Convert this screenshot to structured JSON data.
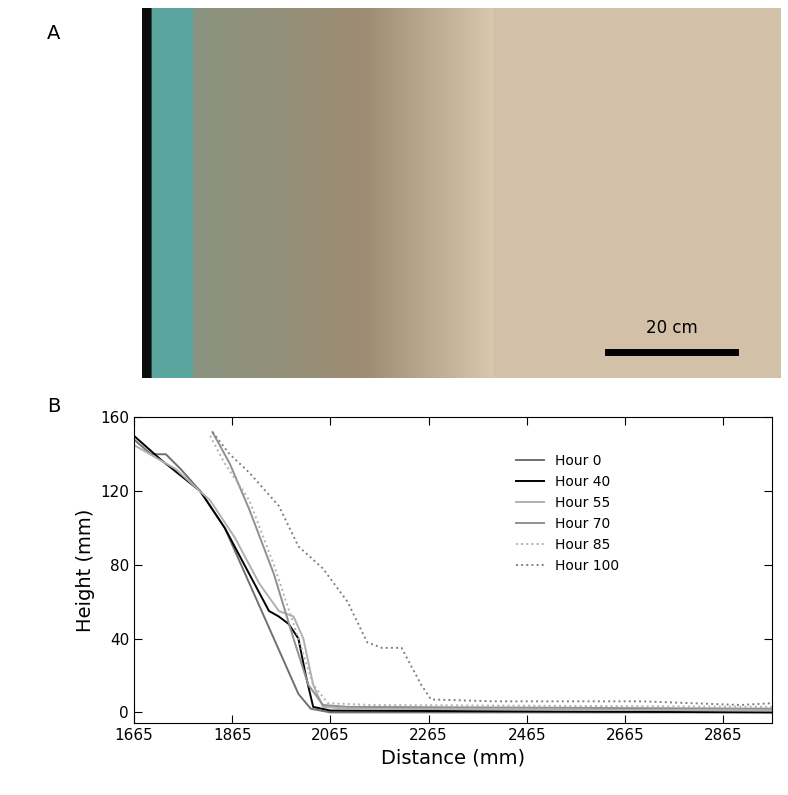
{
  "panels": [
    "A",
    "B"
  ],
  "photo": {
    "scale_bar_label": "20 cm"
  },
  "chart_data": {
    "type": "line",
    "x_label": "Distance (mm)",
    "y_label": "Height (mm)",
    "xlim": [
      1665,
      2965
    ],
    "xticks": [
      1665,
      1865,
      2065,
      2265,
      2465,
      2665,
      2865
    ],
    "ylim": [
      -6,
      160
    ],
    "yticks": [
      0,
      40,
      80,
      120,
      160
    ],
    "legend": "upper right",
    "series": [
      {
        "name": "Hour 0",
        "color": "#707070",
        "line_style": "solid",
        "x": [
          1665,
          1700,
          1730,
          1760,
          1800,
          1850,
          1900,
          1950,
          2000,
          2025,
          2065,
          2965
        ],
        "values": [
          148,
          140,
          140,
          132,
          120,
          100,
          70,
          40,
          10,
          2,
          0,
          0
        ]
      },
      {
        "name": "Hour 40",
        "color": "#000000",
        "line_style": "solid",
        "x": [
          1665,
          1720,
          1800,
          1850,
          1900,
          1940,
          1960,
          1980,
          2000,
          2015,
          2030,
          2065,
          2965
        ],
        "values": [
          150,
          137,
          120,
          100,
          75,
          55,
          52,
          48,
          40,
          20,
          3,
          1,
          0
        ]
      },
      {
        "name": "Hour 55",
        "color": "#b0b0b0",
        "line_style": "solid",
        "x": [
          1665,
          1750,
          1820,
          1870,
          1920,
          1960,
          1990,
          2010,
          2030,
          2050,
          2100,
          2965
        ],
        "values": [
          145,
          132,
          115,
          95,
          70,
          55,
          52,
          40,
          15,
          3,
          2,
          1
        ]
      },
      {
        "name": "Hour 70",
        "color": "#909090",
        "line_style": "solid",
        "x": [
          1825,
          1860,
          1900,
          1950,
          1990,
          2020,
          2050,
          2100,
          2965
        ],
        "values": [
          152,
          135,
          110,
          75,
          40,
          15,
          4,
          3,
          2
        ]
      },
      {
        "name": "Hour 85",
        "color": "#b0b0b0",
        "line_style": "dotted",
        "x": [
          1820,
          1850,
          1900,
          1950,
          2000,
          2030,
          2060,
          2150,
          2965
        ],
        "values": [
          150,
          135,
          115,
          80,
          40,
          15,
          5,
          4,
          3
        ]
      },
      {
        "name": "Hour 100",
        "color": "#808080",
        "line_style": "dotted",
        "x": [
          1825,
          1860,
          1900,
          1960,
          2000,
          2050,
          2100,
          2140,
          2170,
          2210,
          2250,
          2270,
          2400,
          2700,
          2900,
          2965
        ],
        "values": [
          152,
          140,
          130,
          112,
          90,
          78,
          60,
          38,
          35,
          35,
          15,
          7,
          6,
          6,
          4,
          5
        ]
      }
    ]
  }
}
